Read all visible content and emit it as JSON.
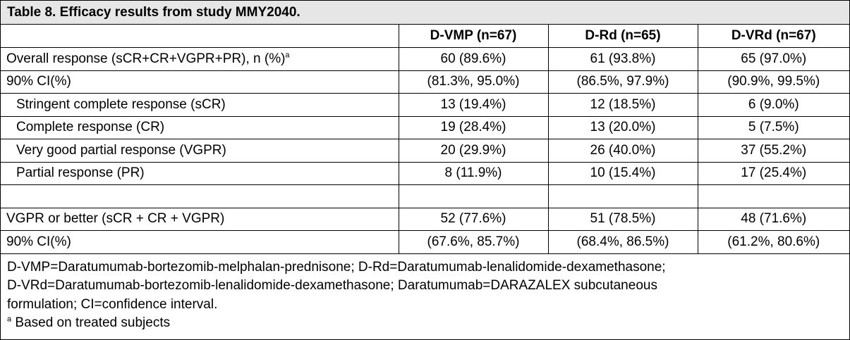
{
  "title": "Table 8. Efficacy results from study MMY2040.",
  "columns": [
    "",
    "D-VMP (n=67)",
    "D-Rd (n=65)",
    "D-VRd (n=67)"
  ],
  "rows": [
    {
      "label": "Overall response (sCR+CR+VGPR+PR), n (%)",
      "sup": "a",
      "values": [
        "60 (89.6%)",
        "61 (93.8%)",
        "65 (97.0%)"
      ]
    },
    {
      "label": "90% CI(%)",
      "values": [
        "(81.3%, 95.0%)",
        "(86.5%, 97.9%)",
        "(90.9%, 99.5%)"
      ]
    },
    {
      "label": "Stringent complete response (sCR)",
      "values": [
        "13 (19.4%)",
        "12 (18.5%)",
        "6 (9.0%)"
      ]
    },
    {
      "label": "Complete response (CR)",
      "values": [
        "19 (28.4%)",
        "13 (20.0%)",
        "5 (7.5%)"
      ]
    },
    {
      "label": "Very good partial response (VGPR)",
      "values": [
        "20 (29.9%)",
        "26 (40.0%)",
        "37 (55.2%)"
      ]
    },
    {
      "label": "Partial response (PR)",
      "values": [
        "8 (11.9%)",
        "10 (15.4%)",
        "17 (25.4%)"
      ]
    },
    {
      "label": "",
      "values": [
        "",
        "",
        ""
      ]
    },
    {
      "label": "VGPR or better (sCR + CR + VGPR)",
      "values": [
        "52 (77.6%)",
        "51 (78.5%)",
        "48 (71.6%)"
      ]
    },
    {
      "label": "90% CI(%)",
      "values": [
        "(67.6%, 85.7%)",
        "(68.4%, 86.5%)",
        "(61.2%, 80.6%)"
      ]
    }
  ],
  "footnotes": {
    "line1": "D-VMP=Daratumumab-bortezomib-melphalan-prednisone; D-Rd=Daratumumab-lenalidomide-dexamethasone;",
    "line2": "D-VRd=Daratumumab-bortezomib-lenalidomide-dexamethasone; Daratumumab=DARAZALEX subcutaneous",
    "line3": "formulation; CI=confidence interval.",
    "sup": "a",
    "line4": " Based on treated subjects"
  }
}
